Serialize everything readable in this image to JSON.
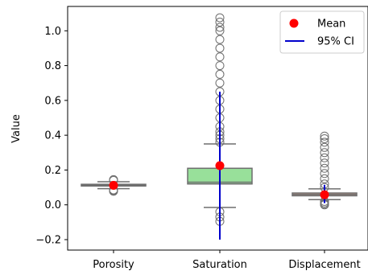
{
  "chart_data": {
    "type": "box",
    "ylabel": "Value",
    "xlabel": "",
    "ylim": [
      -0.26,
      1.14
    ],
    "yticks": [
      -0.2,
      0.0,
      0.2,
      0.4,
      0.6,
      0.8,
      1.0
    ],
    "ytick_labels": [
      "−0.2",
      "0.0",
      "0.2",
      "0.4",
      "0.6",
      "0.8",
      "1.0"
    ],
    "grid": false,
    "legend": {
      "placement": "top-right",
      "entries": [
        {
          "label": "Mean",
          "marker": "circle",
          "color": "#ff0000"
        },
        {
          "label": "95% CI",
          "marker": "line",
          "color": "#0000cc"
        }
      ]
    },
    "categories": [
      "Porosity",
      "Saturation",
      "Displacement"
    ],
    "boxes": [
      {
        "name": "Porosity",
        "color": "#a9c7e6",
        "q1": 0.108,
        "median": 0.113,
        "q3": 0.118,
        "whisker_low": 0.093,
        "whisker_high": 0.133,
        "mean": 0.112,
        "ci_low": 0.093,
        "ci_high": 0.132,
        "outliers": [
          0.078,
          0.082,
          0.086,
          0.14,
          0.145
        ]
      },
      {
        "name": "Saturation",
        "color": "#98e09a",
        "q1": 0.12,
        "median": 0.13,
        "q3": 0.21,
        "whisker_low": -0.015,
        "whisker_high": 0.35,
        "mean": 0.225,
        "ci_low": -0.2,
        "ci_high": 0.65,
        "outliers": [
          -0.04,
          -0.07,
          -0.095,
          0.36,
          0.38,
          0.4,
          0.42,
          0.45,
          0.5,
          0.55,
          0.6,
          0.65,
          0.7,
          0.75,
          0.8,
          0.85,
          0.9,
          0.95,
          1.0,
          1.02,
          1.05,
          1.075
        ]
      },
      {
        "name": "Displacement",
        "color": "#e5a58c",
        "q1": 0.052,
        "median": 0.06,
        "q3": 0.068,
        "whisker_low": 0.03,
        "whisker_high": 0.092,
        "mean": 0.058,
        "ci_low": 0.01,
        "ci_high": 0.115,
        "outliers": [
          0.0,
          0.005,
          0.012,
          0.02,
          0.1,
          0.12,
          0.15,
          0.18,
          0.21,
          0.24,
          0.27,
          0.3,
          0.33,
          0.36,
          0.38,
          0.395
        ]
      }
    ]
  }
}
